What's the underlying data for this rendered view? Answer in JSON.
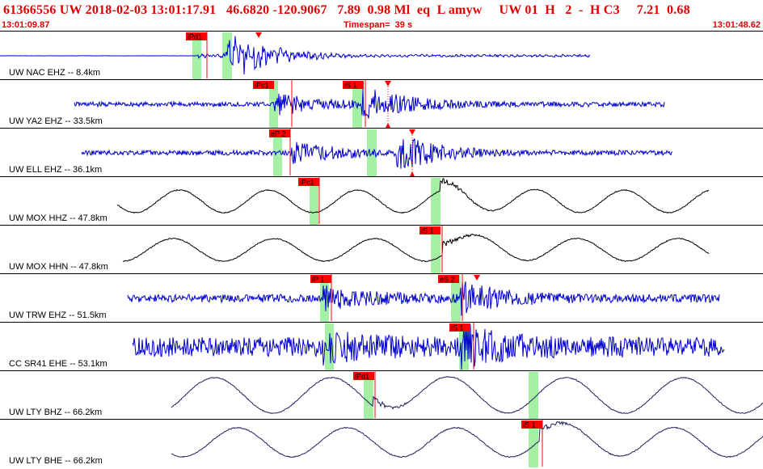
{
  "header": {
    "event_line": "61366556 UW 2018-02-03 13:01:17.91   46.6820 -120.9067   7.89  0.98 Ml  eq  L amyw     UW 01  H   2  -  H C3     7.21  0.68",
    "time_start": "13:01:09.87",
    "timespan_label": "Timespan=  39 s",
    "time_end": "13:01:48.62"
  },
  "colors": {
    "text_red": "#e00000",
    "pick_flag": "#ff0000",
    "pick_window": "#a6f0a6",
    "trace_broadband": "#000000",
    "trace_short_period": "#0000cc"
  },
  "traces": [
    {
      "label": "UW NAC EHZ -- 8.4km",
      "color": "blue",
      "picks": [
        {
          "text": "iPd1"
        }
      ],
      "has_s_marker": true
    },
    {
      "label": "UW YA2 EHZ -- 33.5km",
      "color": "blue",
      "picks": [
        {
          "text": "iPc1"
        },
        {
          "text": "iS 1"
        }
      ],
      "has_s_marker": true
    },
    {
      "label": "UW ELL EHZ -- 36.1km",
      "color": "blue",
      "picks": [
        {
          "text": "eP 2"
        }
      ],
      "has_s_marker": true
    },
    {
      "label": "UW MOX HHZ -- 47.8km",
      "color": "black",
      "picks": [
        {
          "text": "iPc1"
        }
      ],
      "has_s_marker": false
    },
    {
      "label": "UW MOX HHN -- 47.8km",
      "color": "black",
      "picks": [
        {
          "text": "iS 1"
        }
      ],
      "has_s_marker": false
    },
    {
      "label": "UW TRW EHZ -- 51.5km",
      "color": "blue",
      "picks": [
        {
          "text": "iP 1"
        },
        {
          "text": "eS 2"
        }
      ],
      "has_s_marker": true
    },
    {
      "label": "CC SR41 EHE -- 53.1km",
      "color": "blue",
      "picks": [
        {
          "text": "iS 1"
        }
      ],
      "has_s_marker": false
    },
    {
      "label": "UW LTY BHZ -- 66.2km",
      "color": "navy",
      "picks": [
        {
          "text": "iPd1"
        }
      ],
      "has_s_marker": false
    },
    {
      "label": "UW LTY BHE -- 66.2km",
      "color": "navy",
      "picks": [
        {
          "text": "iS 1"
        }
      ],
      "has_s_marker": false
    }
  ]
}
